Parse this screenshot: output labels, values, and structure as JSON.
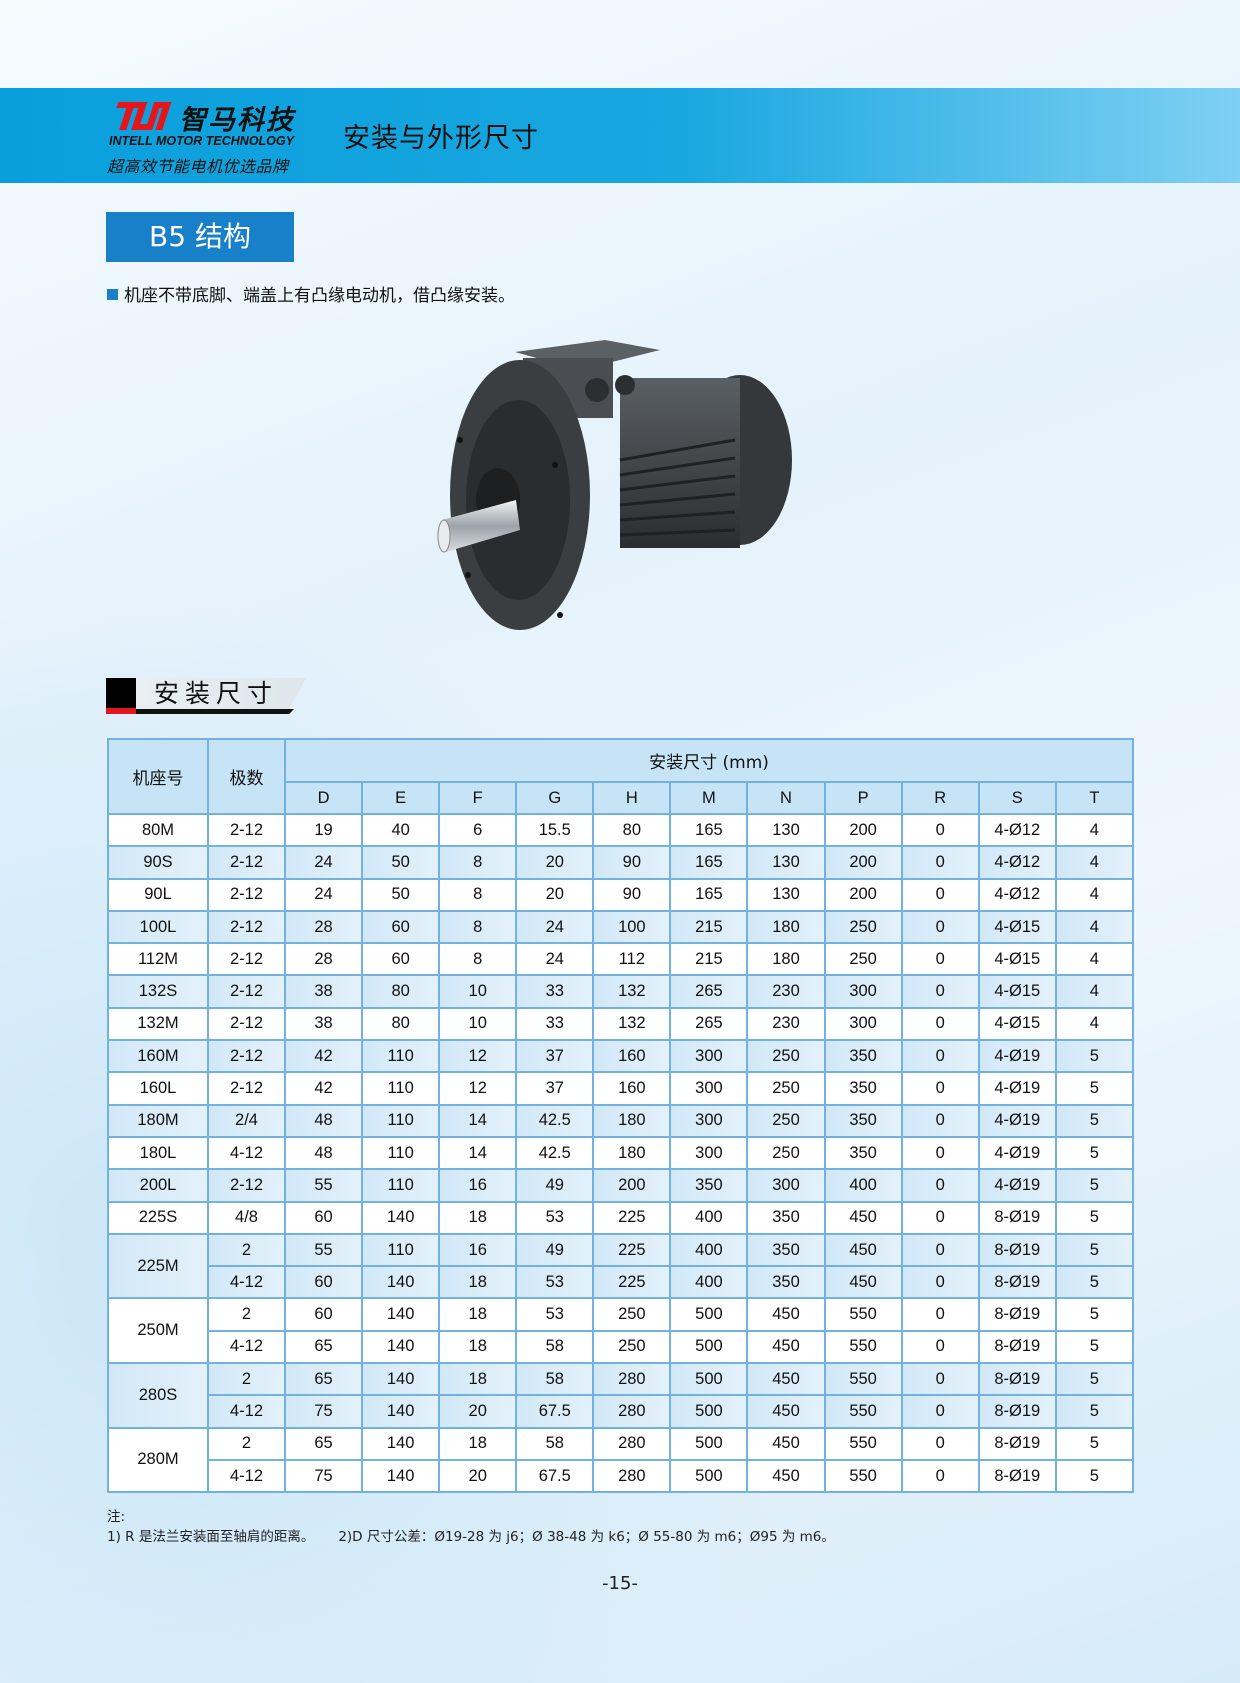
{
  "header": {
    "logo_cn": "智马科技",
    "logo_en": "INTELL MOTOR TECHNOLOGY",
    "slogan": "超高效节能电机优选品牌",
    "title": "安装与外形尺寸"
  },
  "section": {
    "structure_label": "B5 结构",
    "description": "机座不带底脚、端盖上有凸缘电动机，借凸缘安装。",
    "table_heading": "安装尺寸"
  },
  "table": {
    "col_frame": "机座号",
    "col_poles": "极数",
    "group_header": "安装尺寸 (mm)",
    "dims": [
      "D",
      "E",
      "F",
      "G",
      "H",
      "M",
      "N",
      "P",
      "R",
      "S",
      "T"
    ],
    "groups": [
      {
        "frame": "80M",
        "rows": [
          {
            "poles": "2-12",
            "values": [
              "19",
              "40",
              "6",
              "15.5",
              "80",
              "165",
              "130",
              "200",
              "0",
              "4-Ø12",
              "4"
            ]
          }
        ]
      },
      {
        "frame": "90S",
        "rows": [
          {
            "poles": "2-12",
            "values": [
              "24",
              "50",
              "8",
              "20",
              "90",
              "165",
              "130",
              "200",
              "0",
              "4-Ø12",
              "4"
            ]
          }
        ]
      },
      {
        "frame": "90L",
        "rows": [
          {
            "poles": "2-12",
            "values": [
              "24",
              "50",
              "8",
              "20",
              "90",
              "165",
              "130",
              "200",
              "0",
              "4-Ø12",
              "4"
            ]
          }
        ]
      },
      {
        "frame": "100L",
        "rows": [
          {
            "poles": "2-12",
            "values": [
              "28",
              "60",
              "8",
              "24",
              "100",
              "215",
              "180",
              "250",
              "0",
              "4-Ø15",
              "4"
            ]
          }
        ]
      },
      {
        "frame": "112M",
        "rows": [
          {
            "poles": "2-12",
            "values": [
              "28",
              "60",
              "8",
              "24",
              "112",
              "215",
              "180",
              "250",
              "0",
              "4-Ø15",
              "4"
            ]
          }
        ]
      },
      {
        "frame": "132S",
        "rows": [
          {
            "poles": "2-12",
            "values": [
              "38",
              "80",
              "10",
              "33",
              "132",
              "265",
              "230",
              "300",
              "0",
              "4-Ø15",
              "4"
            ]
          }
        ]
      },
      {
        "frame": "132M",
        "rows": [
          {
            "poles": "2-12",
            "values": [
              "38",
              "80",
              "10",
              "33",
              "132",
              "265",
              "230",
              "300",
              "0",
              "4-Ø15",
              "4"
            ]
          }
        ]
      },
      {
        "frame": "160M",
        "rows": [
          {
            "poles": "2-12",
            "values": [
              "42",
              "110",
              "12",
              "37",
              "160",
              "300",
              "250",
              "350",
              "0",
              "4-Ø19",
              "5"
            ]
          }
        ]
      },
      {
        "frame": "160L",
        "rows": [
          {
            "poles": "2-12",
            "values": [
              "42",
              "110",
              "12",
              "37",
              "160",
              "300",
              "250",
              "350",
              "0",
              "4-Ø19",
              "5"
            ]
          }
        ]
      },
      {
        "frame": "180M",
        "rows": [
          {
            "poles": "2/4",
            "values": [
              "48",
              "110",
              "14",
              "42.5",
              "180",
              "300",
              "250",
              "350",
              "0",
              "4-Ø19",
              "5"
            ]
          }
        ]
      },
      {
        "frame": "180L",
        "rows": [
          {
            "poles": "4-12",
            "values": [
              "48",
              "110",
              "14",
              "42.5",
              "180",
              "300",
              "250",
              "350",
              "0",
              "4-Ø19",
              "5"
            ]
          }
        ]
      },
      {
        "frame": "200L",
        "rows": [
          {
            "poles": "2-12",
            "values": [
              "55",
              "110",
              "16",
              "49",
              "200",
              "350",
              "300",
              "400",
              "0",
              "4-Ø19",
              "5"
            ]
          }
        ]
      },
      {
        "frame": "225S",
        "rows": [
          {
            "poles": "4/8",
            "values": [
              "60",
              "140",
              "18",
              "53",
              "225",
              "400",
              "350",
              "450",
              "0",
              "8-Ø19",
              "5"
            ]
          }
        ]
      },
      {
        "frame": "225M",
        "rows": [
          {
            "poles": "2",
            "values": [
              "55",
              "110",
              "16",
              "49",
              "225",
              "400",
              "350",
              "450",
              "0",
              "8-Ø19",
              "5"
            ]
          },
          {
            "poles": "4-12",
            "values": [
              "60",
              "140",
              "18",
              "53",
              "225",
              "400",
              "350",
              "450",
              "0",
              "8-Ø19",
              "5"
            ]
          }
        ]
      },
      {
        "frame": "250M",
        "rows": [
          {
            "poles": "2",
            "values": [
              "60",
              "140",
              "18",
              "53",
              "250",
              "500",
              "450",
              "550",
              "0",
              "8-Ø19",
              "5"
            ]
          },
          {
            "poles": "4-12",
            "values": [
              "65",
              "140",
              "18",
              "58",
              "250",
              "500",
              "450",
              "550",
              "0",
              "8-Ø19",
              "5"
            ]
          }
        ]
      },
      {
        "frame": "280S",
        "rows": [
          {
            "poles": "2",
            "values": [
              "65",
              "140",
              "18",
              "58",
              "280",
              "500",
              "450",
              "550",
              "0",
              "8-Ø19",
              "5"
            ]
          },
          {
            "poles": "4-12",
            "values": [
              "75",
              "140",
              "20",
              "67.5",
              "280",
              "500",
              "450",
              "550",
              "0",
              "8-Ø19",
              "5"
            ]
          }
        ]
      },
      {
        "frame": "280M",
        "rows": [
          {
            "poles": "2",
            "values": [
              "65",
              "140",
              "18",
              "58",
              "280",
              "500",
              "450",
              "550",
              "0",
              "8-Ø19",
              "5"
            ]
          },
          {
            "poles": "4-12",
            "values": [
              "75",
              "140",
              "20",
              "67.5",
              "280",
              "500",
              "450",
              "550",
              "0",
              "8-Ø19",
              "5"
            ]
          }
        ]
      }
    ]
  },
  "notes": {
    "label": "注:",
    "note1": "1) R 是法兰安装面至轴肩的距离。",
    "note2": "2)D 尺寸公差：Ø19-28 为 j6；Ø 38-48 为 k6；Ø 55-80 为 m6；Ø95 为 m6。"
  },
  "page_number": "-15-",
  "colors": {
    "brand_blue": "#1780c8",
    "band_blue": "#0a9fdc",
    "logo_red": "#e3161b",
    "table_border": "#72b2e0",
    "table_header": "#c7e4f6"
  }
}
